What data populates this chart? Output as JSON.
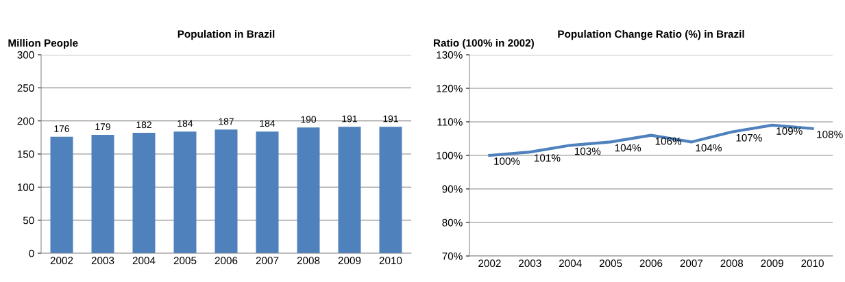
{
  "chart_data": [
    {
      "type": "bar",
      "title": "Population in Brazil",
      "ylabel": "Million People",
      "categories": [
        "2002",
        "2003",
        "2004",
        "2005",
        "2006",
        "2007",
        "2008",
        "2009",
        "2010"
      ],
      "series": [
        {
          "color": "#4f81bd",
          "values": [
            176,
            179,
            182,
            184,
            187,
            184,
            190,
            191,
            191
          ]
        }
      ],
      "ylim": [
        0,
        300
      ],
      "yticks": [
        0,
        50,
        100,
        150,
        200,
        250,
        300
      ],
      "grid": "y",
      "data_labels": true
    },
    {
      "type": "line",
      "title": "Population Change Ratio (%) in Brazil",
      "ylabel": "Ratio (100% in 2002)",
      "categories": [
        "2002",
        "2003",
        "2004",
        "2005",
        "2006",
        "2007",
        "2008",
        "2009",
        "2010"
      ],
      "series": [
        {
          "color": "#4f81bd",
          "values": [
            100,
            101,
            103,
            104,
            106,
            104,
            107,
            109,
            108
          ],
          "value_labels": [
            "100%",
            "101%",
            "103%",
            "104%",
            "106%",
            "104%",
            "107%",
            "109%",
            "108%"
          ]
        }
      ],
      "ylim": [
        70,
        130
      ],
      "yticks": [
        {
          "value": 70,
          "label": "70%"
        },
        {
          "value": 80,
          "label": "80%"
        },
        {
          "value": 90,
          "label": "90%"
        },
        {
          "value": 100,
          "label": "100%"
        },
        {
          "value": 110,
          "label": "110%"
        },
        {
          "value": 120,
          "label": "120%"
        },
        {
          "value": 130,
          "label": "130%"
        }
      ],
      "grid": "y",
      "marker": "none",
      "line_style": "solid"
    }
  ]
}
